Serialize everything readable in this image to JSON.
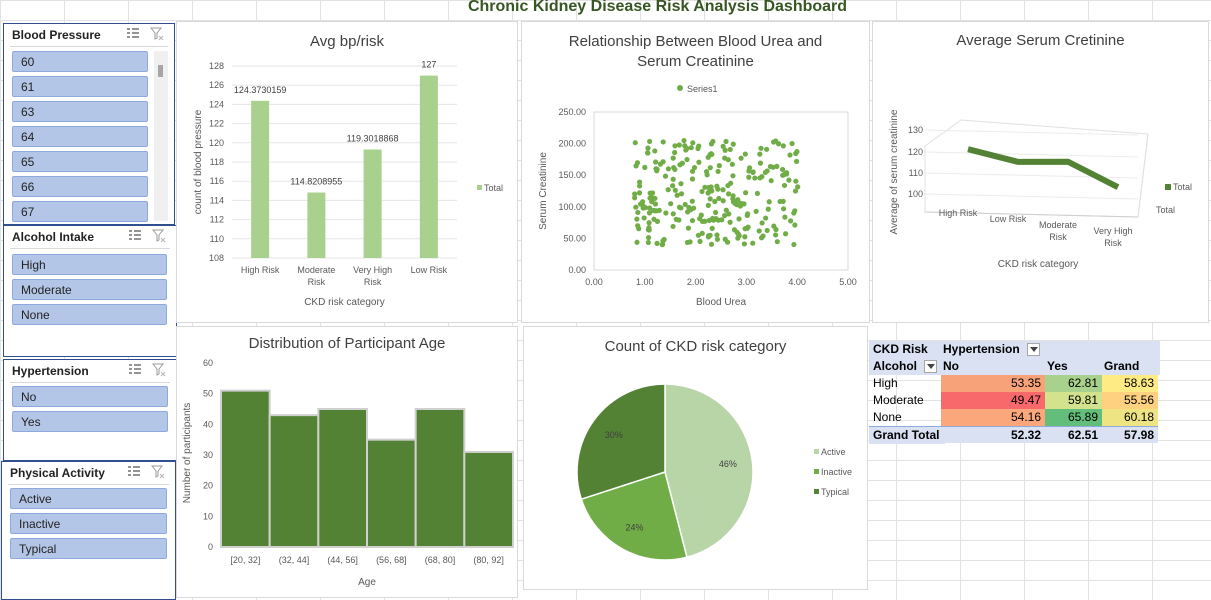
{
  "dashboard_title": "Chronic Kidney Disease Risk Analysis Dashboard",
  "slicers": [
    {
      "title": "Blood Pressure",
      "items": [
        "60",
        "61",
        "63",
        "64",
        "65",
        "66",
        "67"
      ]
    },
    {
      "title": "Alcohol Intake",
      "items": [
        "High",
        "Moderate",
        "None"
      ]
    },
    {
      "title": "Hypertension",
      "items": [
        "No",
        "Yes"
      ]
    },
    {
      "title": "Physical Activity",
      "items": [
        "Active",
        "Inactive",
        "Typical"
      ]
    }
  ],
  "icons": {
    "multiselect": "multiselect-icon",
    "clear_filter": "clear-filter-icon"
  },
  "colors": {
    "accent_green": "#548235",
    "light_green": "#a9d18e",
    "mid_green": "#70ad47",
    "pale_green": "#b8d5a7",
    "slicer_item": "#b4c6e7",
    "title_green": "#375623"
  },
  "chart_data": [
    {
      "type": "bar",
      "title": "Avg bp/risk",
      "categories": [
        "High Risk",
        "Moderate Risk",
        "Very High Risk",
        "Low Risk"
      ],
      "series": [
        {
          "name": "Total",
          "values": [
            124.3730159,
            114.8208955,
            119.3018868,
            127
          ]
        }
      ],
      "data_labels": [
        "124.3730159",
        "114.8208955",
        "119.3018868",
        "127"
      ],
      "xlabel": "CKD risk category",
      "ylabel": "count of blood pressure",
      "ylim": [
        108,
        128
      ],
      "yticks": [
        108,
        110,
        112,
        114,
        116,
        118,
        120,
        122,
        124,
        126,
        128
      ],
      "legend": "right"
    },
    {
      "type": "scatter",
      "title": "Relationship Between Blood Urea and Serum Creatinine",
      "series": [
        {
          "name": "Series1"
        }
      ],
      "xlabel": "Blood Urea",
      "ylabel": "Serum Creatinine",
      "xlim": [
        0,
        5
      ],
      "ylim": [
        0,
        250
      ],
      "xticks": [
        "0.00",
        "1.00",
        "2.00",
        "3.00",
        "4.00",
        "5.00"
      ],
      "yticks": [
        "0.00",
        "50.00",
        "100.00",
        "150.00",
        "200.00",
        "250.00"
      ],
      "points_note": "approx 260 points, x 0.8-4.1, y 40-205",
      "legend": "top"
    },
    {
      "type": "line",
      "title": "Average Serum Cretinine",
      "categories": [
        "High Risk",
        "Low Risk",
        "Moderate Risk",
        "Very High Risk"
      ],
      "series": [
        {
          "name": "Total",
          "values": [
            121,
            116,
            117,
            106
          ]
        }
      ],
      "xlabel": "CKD risk category",
      "ylabel": "Average of serum creatinine",
      "ylim": [
        100,
        130
      ],
      "yticks": [
        100,
        110,
        120,
        130
      ],
      "depth_label": "Total",
      "legend": "right"
    },
    {
      "type": "bar",
      "title": "Distribution of Participant Age",
      "categories": [
        "[20, 32]",
        "(32, 44]",
        "(44, 56]",
        "(56, 68]",
        "(68, 80]",
        "(80, 92]"
      ],
      "values": [
        51,
        43,
        45,
        35,
        45,
        31
      ],
      "xlabel": "Age",
      "ylabel": "Number of participants",
      "ylim": [
        0,
        60
      ],
      "yticks": [
        0,
        10,
        20,
        30,
        40,
        50,
        60
      ]
    },
    {
      "type": "pie",
      "title": "Count of CKD risk category",
      "categories": [
        "Active",
        "Inactive",
        "Typical"
      ],
      "values": [
        46,
        24,
        30
      ],
      "data_labels": [
        "46%",
        "24%",
        "30%"
      ],
      "legend": "right"
    }
  ],
  "pivot": {
    "row_header": "CKD Risk",
    "col_header": "Hypertension",
    "row_field": "Alcohol",
    "columns": [
      "No",
      "Yes",
      "Grand Total"
    ],
    "rows": [
      {
        "label": "High",
        "values": [
          "53.35",
          "62.81",
          "58.63"
        ]
      },
      {
        "label": "Moderate",
        "values": [
          "49.47",
          "59.81",
          "55.56"
        ]
      },
      {
        "label": "None",
        "values": [
          "54.16",
          "65.89",
          "60.18"
        ]
      }
    ],
    "total": {
      "label": "Grand Total",
      "values": [
        "52.32",
        "62.51",
        "57.98"
      ]
    }
  }
}
